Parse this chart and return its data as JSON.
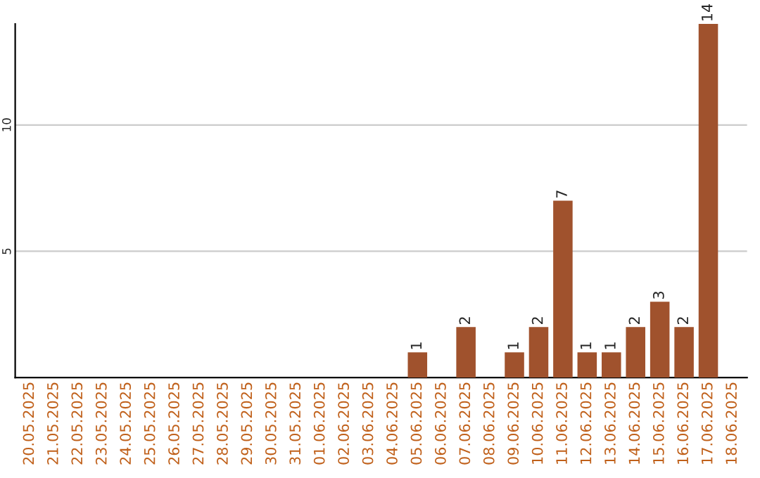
{
  "chart_data": {
    "type": "bar",
    "categories": [
      "20.05.2025",
      "21.05.2025",
      "22.05.2025",
      "23.05.2025",
      "24.05.2025",
      "25.05.2025",
      "26.05.2025",
      "27.05.2025",
      "28.05.2025",
      "29.05.2025",
      "30.05.2025",
      "31.05.2025",
      "01.06.2025",
      "02.06.2025",
      "03.06.2025",
      "04.06.2025",
      "05.06.2025",
      "06.06.2025",
      "07.06.2025",
      "08.06.2025",
      "09.06.2025",
      "10.06.2025",
      "11.06.2025",
      "12.06.2025",
      "13.06.2025",
      "14.06.2025",
      "15.06.2025",
      "16.06.2025",
      "17.06.2025",
      "18.06.2025"
    ],
    "values": [
      0,
      0,
      0,
      0,
      0,
      0,
      0,
      0,
      0,
      0,
      0,
      0,
      0,
      0,
      0,
      0,
      1,
      0,
      2,
      0,
      1,
      2,
      7,
      1,
      1,
      2,
      3,
      2,
      14,
      0
    ],
    "value_labels": [
      null,
      null,
      null,
      null,
      null,
      null,
      null,
      null,
      null,
      null,
      null,
      null,
      null,
      null,
      null,
      null,
      "1",
      null,
      "2",
      null,
      "1",
      "2",
      "7",
      "1",
      "1",
      "2",
      "3",
      "2",
      "14",
      null
    ],
    "color": "#a0522d",
    "ylim": [
      0,
      14.0
    ],
    "yticks": [
      5,
      10
    ],
    "grid": "y"
  }
}
